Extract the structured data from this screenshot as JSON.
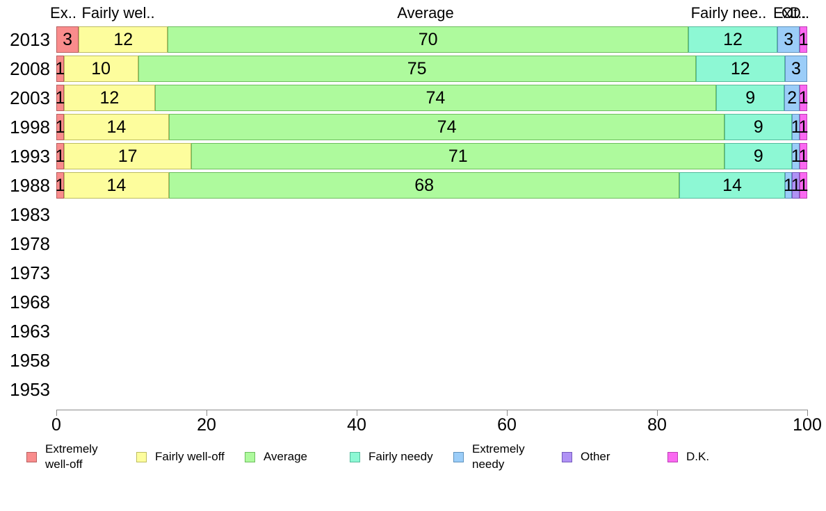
{
  "chart_data": {
    "type": "bar",
    "stacked": true,
    "orientation": "horizontal",
    "title": "",
    "xlabel": "",
    "ylabel": "",
    "xlim": [
      0,
      100
    ],
    "x_ticks": [
      0,
      20,
      40,
      60,
      80,
      100
    ],
    "grid": false,
    "legend_position": "bottom",
    "value_labels_shown": true,
    "categories": [
      "2013",
      "2008",
      "2003",
      "1998",
      "1993",
      "1988",
      "1983",
      "1978",
      "1973",
      "1968",
      "1963",
      "1958",
      "1953"
    ],
    "series": [
      {
        "name": "Extremely well-off",
        "legend_label": "Extremely\nwell-off",
        "header_label": "Ex..",
        "color": "#f98c8c",
        "border_color": "#b85f5f",
        "values": [
          3,
          1,
          1,
          1,
          1,
          1,
          0,
          0,
          0,
          0,
          0,
          0,
          0
        ]
      },
      {
        "name": "Fairly well-off",
        "legend_label": "Fairly well-off",
        "header_label": "Fairly wel..",
        "color": "#fdfd9d",
        "border_color": "#bdbd60",
        "values": [
          12,
          10,
          12,
          14,
          17,
          14,
          0,
          0,
          0,
          0,
          0,
          0,
          0
        ]
      },
      {
        "name": "Average",
        "legend_label": "Average",
        "header_label": "Average",
        "color": "#aefa9d",
        "border_color": "#6dbd5d",
        "values": [
          70,
          75,
          74,
          74,
          71,
          68,
          0,
          0,
          0,
          0,
          0,
          0,
          0
        ]
      },
      {
        "name": "Fairly needy",
        "legend_label": "Fairly needy",
        "header_label": "Fairly nee..",
        "color": "#8df8d4",
        "border_color": "#55bb9c",
        "values": [
          12,
          12,
          9,
          9,
          9,
          14,
          0,
          0,
          0,
          0,
          0,
          0,
          0
        ]
      },
      {
        "name": "Extremely needy",
        "legend_label": "Extremely\nneedy",
        "header_label": "Ex..",
        "color": "#9bcdf8",
        "border_color": "#5e92bd",
        "values": [
          3,
          3,
          2,
          1,
          1,
          1,
          0,
          0,
          0,
          0,
          0,
          0,
          0
        ]
      },
      {
        "name": "Other",
        "legend_label": "Other",
        "header_label": "Ot..",
        "color": "#b092f5",
        "border_color": "#7459bd",
        "values": [
          0,
          0,
          0,
          0,
          0,
          1,
          0,
          0,
          0,
          0,
          0,
          0,
          0
        ]
      },
      {
        "name": "D.K.",
        "legend_label": "D.K.",
        "header_label": "D..",
        "color": "#fa69f1",
        "border_color": "#bd3eb5",
        "values": [
          1,
          0,
          1,
          1,
          1,
          1,
          0,
          0,
          0,
          0,
          0,
          0,
          0
        ]
      }
    ]
  }
}
